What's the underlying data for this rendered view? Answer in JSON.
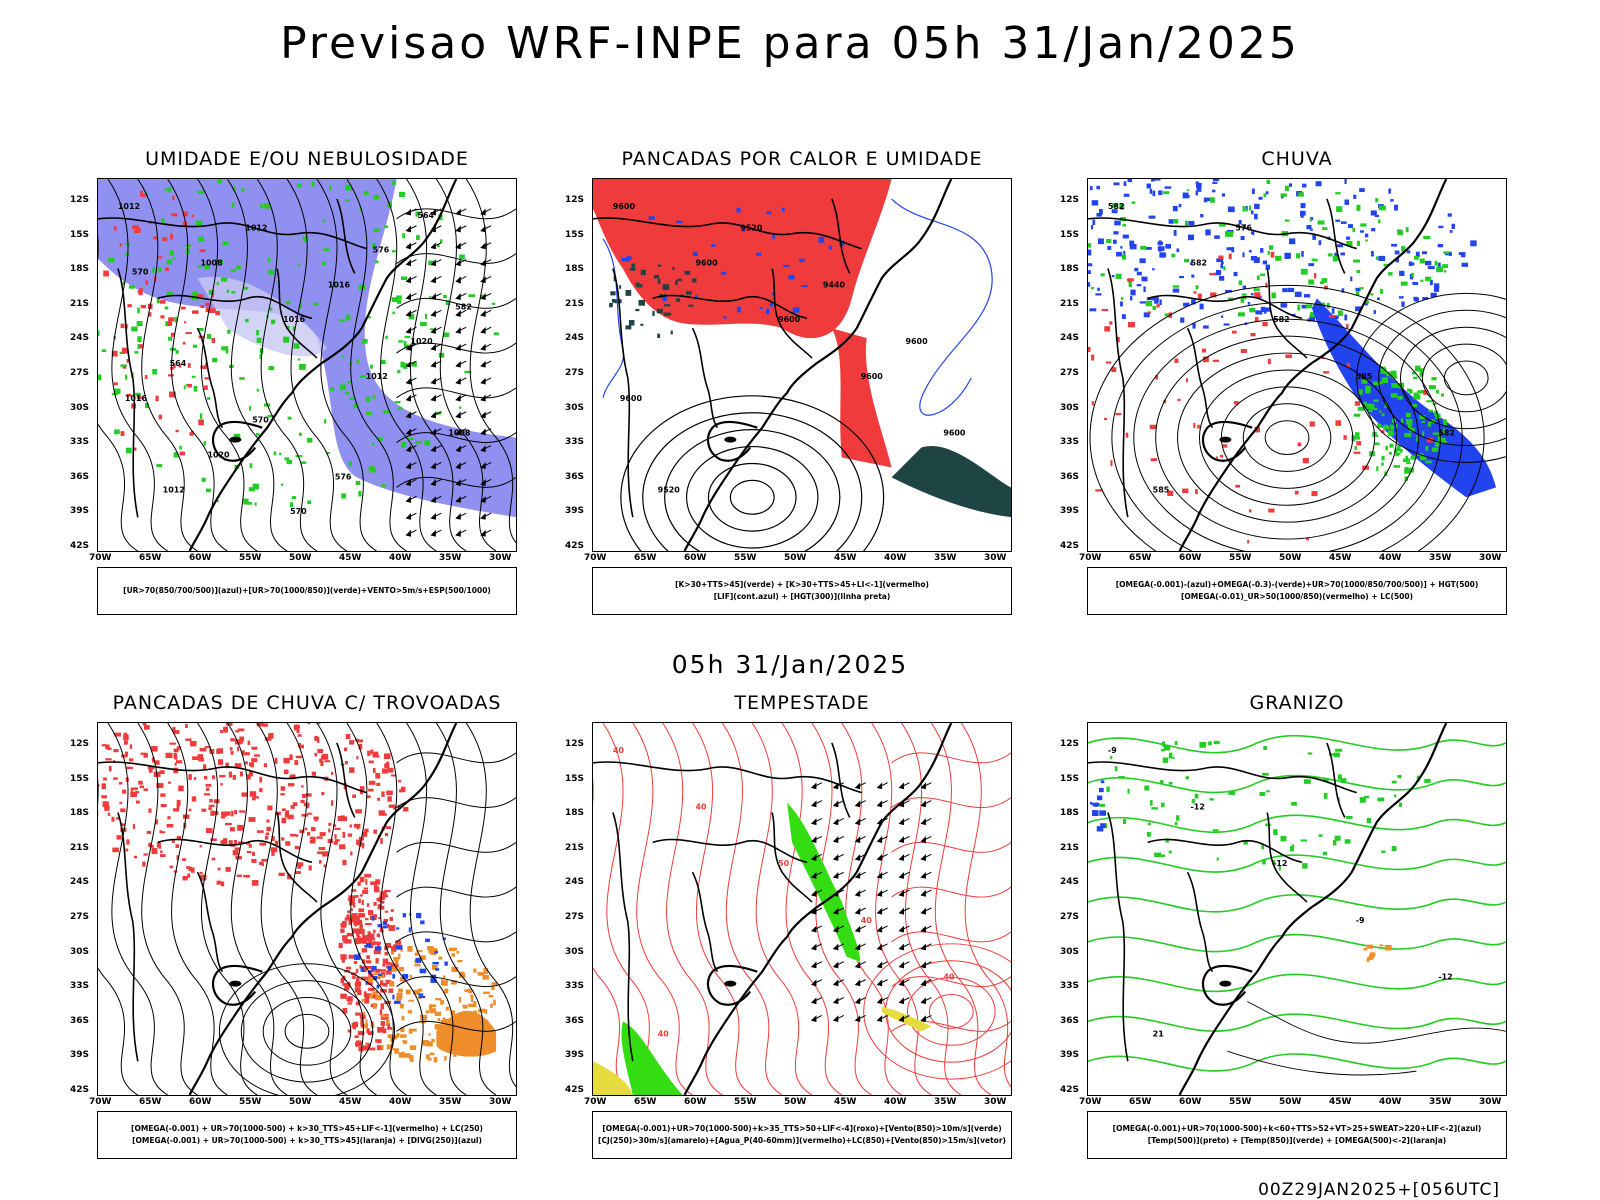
{
  "title": "Previsao WRF-INPE  para 05h 31/Jan/2025",
  "subtitle": "05h 31/Jan/2025",
  "footer": "00Z29JAN2025+[056UTC]",
  "axes": {
    "lat_labels": [
      "12S",
      "15S",
      "18S",
      "21S",
      "24S",
      "27S",
      "30S",
      "33S",
      "36S",
      "39S",
      "42S"
    ],
    "lon_labels": [
      "70W",
      "65W",
      "60W",
      "55W",
      "50W",
      "45W",
      "40W",
      "35W",
      "30W"
    ]
  },
  "colors": {
    "blue_fill": "#8a8af0",
    "light_blue_fill": "#c8c8f4",
    "green": "#22cc22",
    "red": "#ef3b3b",
    "blue": "#2244ee",
    "dark_teal": "#1f4444",
    "orange": "#ef8d2a",
    "yellow": "#e6dc40",
    "bright_green": "#33dd11"
  },
  "panels": [
    {
      "title": "UMIDADE E/OU NEBULOSIDADE",
      "legend": [
        "[UR>70(850/700/500)](azul)+[UR>70(1000/850)](verde)+VENTO>5m/s+ESP(500/1000)"
      ],
      "contour_labels": [
        "1012",
        "1008",
        "1016",
        "1012",
        "1008",
        "1012",
        "1012",
        "1016",
        "1020",
        "1016",
        "1020",
        "570",
        "576",
        "582",
        "564",
        "570",
        "576",
        "564",
        "570"
      ]
    },
    {
      "title": "PANCADAS POR CALOR E UMIDADE",
      "legend": [
        "[K>30+TTS>45](verde) + [K>30+TTS>45+LI<-1](vermelho)",
        "[LIF](cont.azul) + [HGT(300)](linha preta)"
      ],
      "contour_labels": [
        "9600",
        "9600",
        "9600",
        "9600",
        "9600",
        "9520",
        "9520",
        "9440",
        "9600",
        "9600"
      ]
    },
    {
      "title": "CHUVA",
      "legend": [
        "[OMEGA(-0.001)-(azul)+OMEGA(-0.3)-(verde)+UR>70(1000/850/700/500)] + HGT(500)",
        "[OMEGA(-0.01)_UR>50(1000/850)(vermelho) + LC(500)"
      ],
      "contour_labels": [
        "582",
        "582",
        "582",
        "585",
        "582",
        "585",
        "576"
      ]
    },
    {
      "title": "PANCADAS DE CHUVA C/ TROVOADAS",
      "legend": [
        "[OMEGA(-0.001) + UR>70(1000-500) + k>30_TTS>45+LIF<-1](vermelho) + LC(250)",
        "[OMEGA(-0.001) + UR>70(1000-500) + k>30_TTS>45](laranja) + [DIVG(250)](azul)"
      ],
      "contour_labels": []
    },
    {
      "title": "TEMPESTADE",
      "legend": [
        "[OMEGA(-0.001)+UR>70(1000-500)+k>35_TTS>50+LIF<-4](roxo)+[Vento(850)>10m/s](verde)",
        "[CJ(250)>30m/s](amarelo)+[Agua_P(40-60mm)](vermelho)+LC(850)+[Vento(850)>15m/s](vetor)"
      ],
      "contour_labels": [
        "40",
        "40",
        "50",
        "40",
        "40",
        "40"
      ]
    },
    {
      "title": "GRANIZO",
      "legend": [
        "[OMEGA(-0.001)+UR>70(1000-500)+k<60+TTS>52+VT>25+SWEAT>220+LIF<-2](azul)",
        "[Temp(500)](preto) + [Temp(850)](verde) + [OMEGA(500)<-2](laranja)"
      ],
      "contour_labels": [
        "-9",
        "-12",
        "-12",
        "-9",
        "-12",
        "21"
      ]
    }
  ]
}
